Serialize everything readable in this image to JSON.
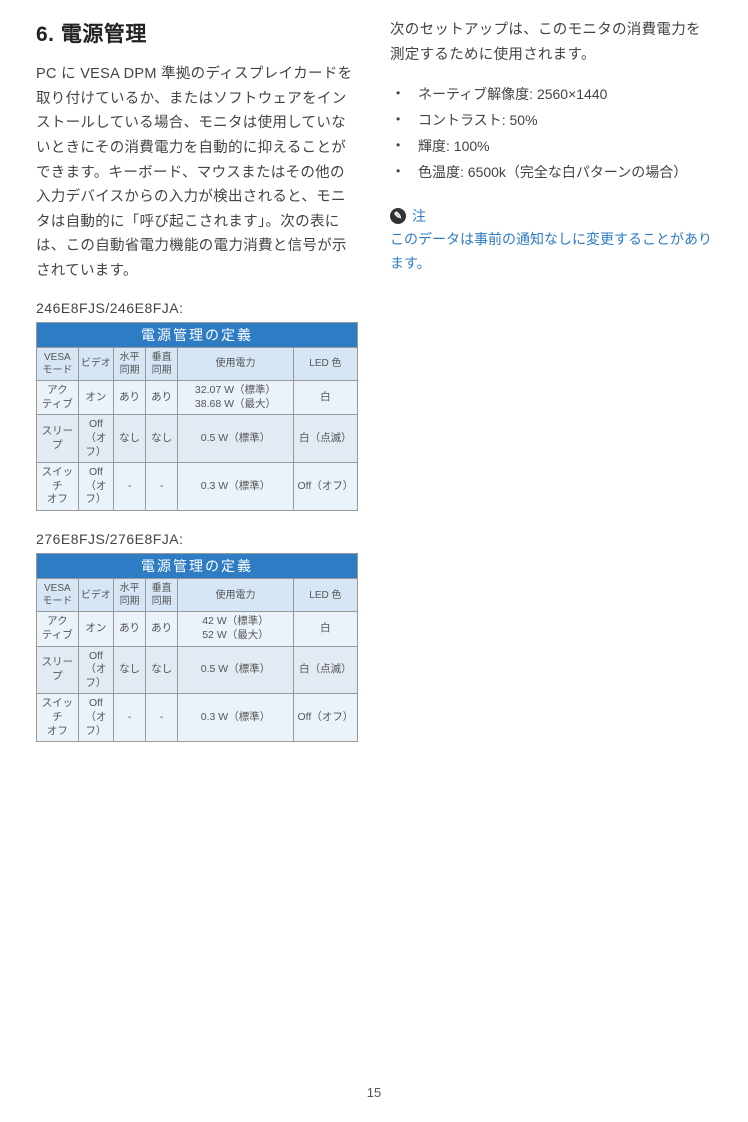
{
  "section": {
    "title": "6.  電源管理",
    "intro": "PC に VESA DPM 準拠のディスプレイカードを取り付けているか、またはソフトウェアをインストールしている場合、モニタは使用していないときにその消費電力を自動的に抑えることができます。キーボード、マウスまたはその他の入力デバイスからの入力が検出されると、モニタは自動的に「呼び起こされます」。次の表には、この自動省電力機能の電力消費と信号が示されています。"
  },
  "right": {
    "intro": "次のセットアップは、このモニタの消費電力を測定するために使用されます。",
    "bullets": [
      "ネーティブ解像度: 2560×1440",
      "コントラスト: 50%",
      "輝度: 100%",
      "色温度: 6500k（完全な白パターンの場合）"
    ]
  },
  "note": {
    "label": "注",
    "text": "このデータは事前の通知なしに変更することがあります。"
  },
  "tables": [
    {
      "model": "246E8FJS/246E8FJA:",
      "title": "電源管理の定義",
      "columns": [
        "VESA\nモード",
        "ビデオ",
        "水平\n同期",
        "垂直\n同期",
        "使用電力",
        "LED 色"
      ],
      "rows": [
        [
          "アク\nティブ",
          "オン",
          "あり",
          "あり",
          "32.07 W（標準）\n38.68 W（最大）",
          "白"
        ],
        [
          "スリープ",
          "Off\n（オフ）",
          "なし",
          "なし",
          "0.5 W（標準）",
          "白（点滅）"
        ],
        [
          "スイッチ\nオフ",
          "Off\n（オフ）",
          "-",
          "-",
          "0.3 W（標準）",
          "Off（オフ）"
        ]
      ]
    },
    {
      "model": "276E8FJS/276E8FJA:",
      "title": "電源管理の定義",
      "columns": [
        "VESA\nモード",
        "ビデオ",
        "水平\n同期",
        "垂直\n同期",
        "使用電力",
        "LED 色"
      ],
      "rows": [
        [
          "アク\nティブ",
          "オン",
          "あり",
          "あり",
          "42 W（標準）\n52 W（最大）",
          "白"
        ],
        [
          "スリープ",
          "Off\n（オフ）",
          "なし",
          "なし",
          "0.5 W（標準）",
          "白（点滅）"
        ],
        [
          "スイッチ\nオフ",
          "Off\n（オフ）",
          "-",
          "-",
          "0.3 W（標準）",
          "Off（オフ）"
        ]
      ]
    }
  ],
  "page_number": "15",
  "style": {
    "accent_color": "#2e7cc4",
    "table_header_bg": "#d6e6f5",
    "table_row_alt1_bg": "#eaf2fa",
    "table_row_alt2_bg": "#e2ebf3",
    "text_color": "#444444",
    "border_color": "#999999"
  }
}
